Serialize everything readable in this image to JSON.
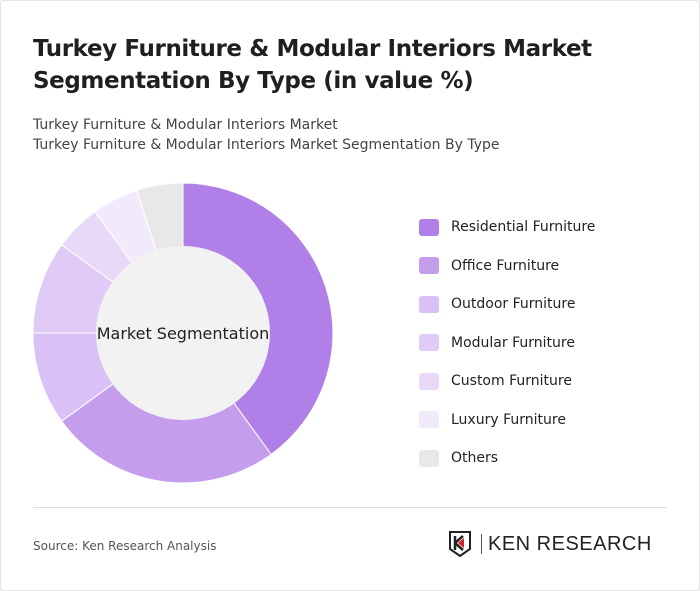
{
  "title": "Turkey Furniture & Modular Interiors Market Segmentation By Type (in value %)",
  "subtitle_lines": [
    "Turkey Furniture & Modular Interiors Market",
    "Turkey Furniture & Modular Interiors Market Segmentation By Type"
  ],
  "source": "Source: Ken Research Analysis",
  "logo_text": "KEN RESEARCH",
  "chart_data": {
    "type": "pie",
    "variant": "donut",
    "center_label": "Market Segmentation",
    "legend_position": "right",
    "categories": [
      "Residential Furniture",
      "Office Furniture",
      "Outdoor Furniture",
      "Modular Furniture",
      "Custom Furniture",
      "Luxury Furniture",
      "Others"
    ],
    "values": [
      40,
      25,
      10,
      10,
      5,
      5,
      5
    ],
    "colors": [
      "#b07fe8",
      "#c49eed",
      "#d9c1f5",
      "#e0cbf6",
      "#e8d9f8",
      "#f1eafb",
      "#e8e8e8"
    ],
    "center_color": "#f2f2f2"
  }
}
